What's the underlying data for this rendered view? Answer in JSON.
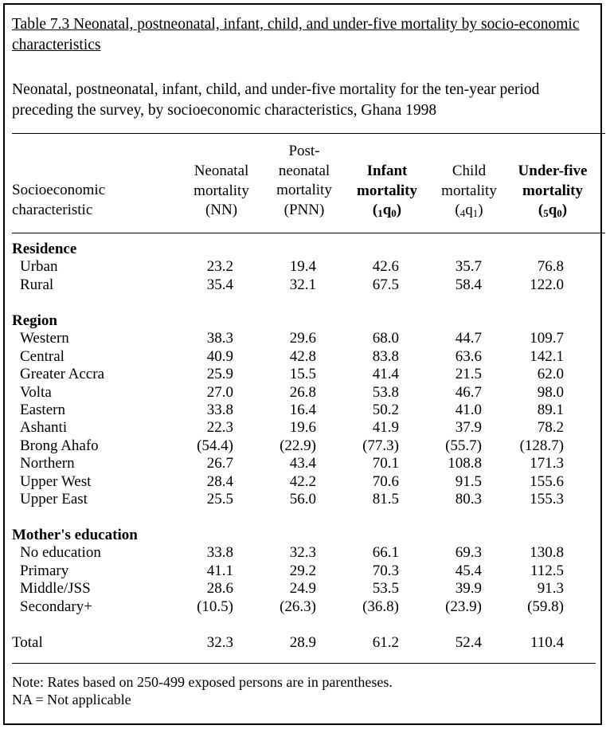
{
  "title": "Table 7.3  Neonatal, postneonatal, infant, child, and under-five mortality by socio-economic characteristics",
  "subtitle": "Neonatal, postneonatal, infant, child, and under-five mortality for the ten-year period preceding the survey, by socioeconomic characteristics, Ghana 1998",
  "header": {
    "stub": [
      "Socioeconomic",
      "characteristic"
    ],
    "nn": [
      "Neonatal",
      "mortality",
      "(NN)"
    ],
    "pnn": [
      "Post-",
      "neonatal",
      "mortality",
      "(PNN)"
    ],
    "infant": [
      "Infant",
      "mortality",
      "(",
      "1",
      "q",
      "0",
      ")"
    ],
    "child": [
      "Child",
      "mortality",
      "(",
      "4",
      "q",
      "1",
      ")"
    ],
    "u5": [
      "Under-five",
      "mortality",
      "(",
      "5",
      "q",
      "0",
      ")"
    ]
  },
  "groups": [
    {
      "label": "Residence",
      "rows": [
        {
          "label": "Urban",
          "values": [
            "23.2",
            "19.4",
            "42.6",
            "35.7",
            "76.8"
          ]
        },
        {
          "label": "Rural",
          "values": [
            "35.4",
            "32.1",
            "67.5",
            "58.4",
            "122.0"
          ]
        }
      ]
    },
    {
      "label": "Region",
      "rows": [
        {
          "label": "Western",
          "values": [
            "38.3",
            "29.6",
            "68.0",
            "44.7",
            "109.7"
          ]
        },
        {
          "label": "Central",
          "values": [
            "40.9",
            "42.8",
            "83.8",
            "63.6",
            "142.1"
          ]
        },
        {
          "label": "Greater Accra",
          "values": [
            "25.9",
            "15.5",
            "41.4",
            "21.5",
            "62.0"
          ]
        },
        {
          "label": "Volta",
          "values": [
            "27.0",
            "26.8",
            "53.8",
            "46.7",
            "98.0"
          ]
        },
        {
          "label": "Eastern",
          "values": [
            "33.8",
            "16.4",
            "50.2",
            "41.0",
            "89.1"
          ]
        },
        {
          "label": "Ashanti",
          "values": [
            "22.3",
            "19.6",
            "41.9",
            "37.9",
            "78.2"
          ]
        },
        {
          "label": "Brong Ahafo",
          "values": [
            "(54.4)",
            "(22.9)",
            "(77.3)",
            "(55.7)",
            "(128.7)"
          ]
        },
        {
          "label": "Northern",
          "values": [
            "26.7",
            "43.4",
            "70.1",
            "108.8",
            "171.3"
          ]
        },
        {
          "label": "Upper West",
          "values": [
            "28.4",
            "42.2",
            "70.6",
            "91.5",
            "155.6"
          ]
        },
        {
          "label": "Upper East",
          "values": [
            "25.5",
            "56.0",
            "81.5",
            "80.3",
            "155.3"
          ]
        }
      ]
    },
    {
      "label": "Mother's education",
      "rows": [
        {
          "label": "No education",
          "values": [
            "33.8",
            "32.3",
            "66.1",
            "69.3",
            "130.8"
          ]
        },
        {
          "label": "Primary",
          "values": [
            "41.1",
            "29.2",
            "70.3",
            "45.4",
            "112.5"
          ]
        },
        {
          "label": "Middle/JSS",
          "values": [
            "28.6",
            "24.9",
            "53.5",
            "39.9",
            "91.3"
          ]
        },
        {
          "label": "Secondary+",
          "values": [
            "(10.5)",
            "(26.3)",
            "(36.8)",
            "(23.9)",
            "(59.8)"
          ]
        }
      ]
    }
  ],
  "total": {
    "label": "Total",
    "values": [
      "32.3",
      "28.9",
      "61.2",
      "52.4",
      "110.4"
    ]
  },
  "notes": [
    "Note:  Rates based on 250-499 exposed persons are in parentheses.",
    "NA = Not applicable"
  ]
}
